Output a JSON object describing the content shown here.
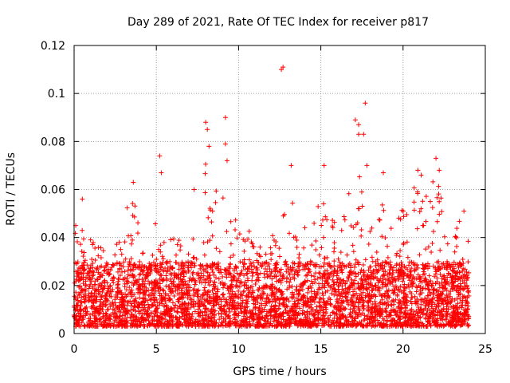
{
  "chart_data": {
    "type": "scatter",
    "title": "Day 289 of 2021, Rate Of TEC Index for receiver p817",
    "xlabel": "GPS time / hours",
    "ylabel": "ROTI / TECUs",
    "xlim": [
      0,
      25
    ],
    "ylim": [
      0,
      0.12
    ],
    "xticks": [
      0,
      5,
      10,
      15,
      20,
      25
    ],
    "yticks": [
      0,
      0.02,
      0.04,
      0.06,
      0.08,
      0.1,
      0.12
    ],
    "xtick_labels": [
      "0",
      "5",
      "10",
      "15",
      "20",
      "25"
    ],
    "ytick_labels": [
      "0",
      "0.02",
      "0.04",
      "0.06",
      "0.08",
      "0.1",
      "0.12"
    ],
    "grid": true,
    "marker": "+",
    "color": "#ff0000",
    "x_range": [
      0,
      24
    ],
    "typical_range": [
      0.003,
      0.03
    ],
    "envelope": [
      {
        "x": 0.0,
        "y": 0.046
      },
      {
        "x": 0.5,
        "y": 0.045
      },
      {
        "x": 1.0,
        "y": 0.039
      },
      {
        "x": 1.5,
        "y": 0.037
      },
      {
        "x": 2.0,
        "y": 0.033
      },
      {
        "x": 2.5,
        "y": 0.035
      },
      {
        "x": 3.0,
        "y": 0.052
      },
      {
        "x": 3.5,
        "y": 0.061
      },
      {
        "x": 4.0,
        "y": 0.045
      },
      {
        "x": 4.5,
        "y": 0.04
      },
      {
        "x": 5.0,
        "y": 0.05
      },
      {
        "x": 5.5,
        "y": 0.04
      },
      {
        "x": 6.0,
        "y": 0.04
      },
      {
        "x": 6.5,
        "y": 0.041
      },
      {
        "x": 7.0,
        "y": 0.04
      },
      {
        "x": 7.5,
        "y": 0.06
      },
      {
        "x": 8.0,
        "y": 0.076
      },
      {
        "x": 8.5,
        "y": 0.06
      },
      {
        "x": 9.0,
        "y": 0.068
      },
      {
        "x": 9.5,
        "y": 0.065
      },
      {
        "x": 10.0,
        "y": 0.055
      },
      {
        "x": 10.5,
        "y": 0.044
      },
      {
        "x": 11.0,
        "y": 0.04
      },
      {
        "x": 11.5,
        "y": 0.042
      },
      {
        "x": 12.0,
        "y": 0.045
      },
      {
        "x": 12.5,
        "y": 0.052
      },
      {
        "x": 13.0,
        "y": 0.068
      },
      {
        "x": 13.5,
        "y": 0.052
      },
      {
        "x": 14.0,
        "y": 0.045
      },
      {
        "x": 14.5,
        "y": 0.043
      },
      {
        "x": 15.0,
        "y": 0.062
      },
      {
        "x": 15.5,
        "y": 0.052
      },
      {
        "x": 16.0,
        "y": 0.048
      },
      {
        "x": 16.5,
        "y": 0.05
      },
      {
        "x": 17.0,
        "y": 0.075
      },
      {
        "x": 17.5,
        "y": 0.065
      },
      {
        "x": 18.0,
        "y": 0.048
      },
      {
        "x": 18.5,
        "y": 0.052
      },
      {
        "x": 19.0,
        "y": 0.065
      },
      {
        "x": 19.5,
        "y": 0.055
      },
      {
        "x": 20.0,
        "y": 0.052
      },
      {
        "x": 20.5,
        "y": 0.063
      },
      {
        "x": 21.0,
        "y": 0.065
      },
      {
        "x": 21.5,
        "y": 0.06
      },
      {
        "x": 22.0,
        "y": 0.068
      },
      {
        "x": 22.5,
        "y": 0.05
      },
      {
        "x": 23.0,
        "y": 0.042
      },
      {
        "x": 23.5,
        "y": 0.048
      },
      {
        "x": 24.0,
        "y": 0.044
      }
    ],
    "notable_points": [
      {
        "x": 0.1,
        "y": 0.045
      },
      {
        "x": 0.5,
        "y": 0.056
      },
      {
        "x": 1.0,
        "y": 0.039
      },
      {
        "x": 3.6,
        "y": 0.063
      },
      {
        "x": 5.2,
        "y": 0.074
      },
      {
        "x": 5.3,
        "y": 0.067
      },
      {
        "x": 7.3,
        "y": 0.06
      },
      {
        "x": 8.0,
        "y": 0.088
      },
      {
        "x": 8.1,
        "y": 0.085
      },
      {
        "x": 8.2,
        "y": 0.078
      },
      {
        "x": 9.2,
        "y": 0.09
      },
      {
        "x": 9.2,
        "y": 0.079
      },
      {
        "x": 9.3,
        "y": 0.072
      },
      {
        "x": 12.6,
        "y": 0.11
      },
      {
        "x": 12.7,
        "y": 0.111
      },
      {
        "x": 13.2,
        "y": 0.07
      },
      {
        "x": 15.2,
        "y": 0.07
      },
      {
        "x": 17.1,
        "y": 0.089
      },
      {
        "x": 17.3,
        "y": 0.083
      },
      {
        "x": 17.3,
        "y": 0.087
      },
      {
        "x": 17.7,
        "y": 0.096
      },
      {
        "x": 17.6,
        "y": 0.083
      },
      {
        "x": 17.8,
        "y": 0.07
      },
      {
        "x": 18.8,
        "y": 0.067
      },
      {
        "x": 20.9,
        "y": 0.068
      },
      {
        "x": 21.1,
        "y": 0.066
      },
      {
        "x": 22.0,
        "y": 0.073
      },
      {
        "x": 22.2,
        "y": 0.068
      },
      {
        "x": 23.7,
        "y": 0.051
      }
    ]
  }
}
